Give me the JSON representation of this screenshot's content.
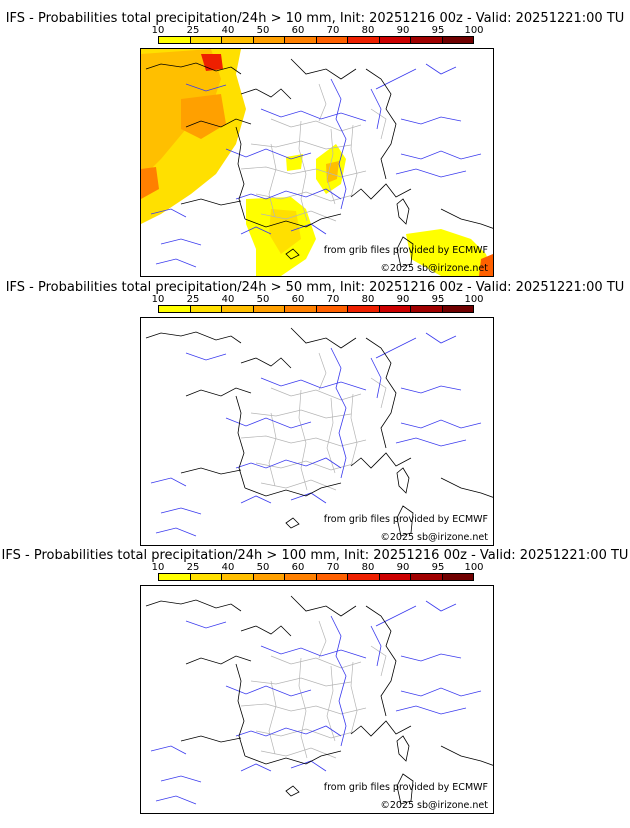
{
  "panels": [
    {
      "title": "IFS - Probabilities total precipitation/24h > 10 mm, Init: 20251216 00z - Valid: 20251221:00 TU",
      "threshold_mm": 10,
      "has_precip_overlay": true
    },
    {
      "title": "IFS - Probabilities total precipitation/24h > 50 mm, Init: 20251216 00z - Valid: 20251221:00 TU",
      "threshold_mm": 50,
      "has_precip_overlay": false
    },
    {
      "title": "IFS - Probabilities total precipitation/24h > 100 mm, Init: 20251216 00z - Valid: 20251221:00 TU",
      "threshold_mm": 100,
      "has_precip_overlay": false
    }
  ],
  "colorbar": {
    "labels": [
      "10",
      "25",
      "40",
      "50",
      "60",
      "70",
      "80",
      "90",
      "95",
      "100"
    ],
    "colors": [
      "#ffff00",
      "#ffe000",
      "#ffbf00",
      "#ffa000",
      "#ff8000",
      "#ff6000",
      "#ee2000",
      "#cc0000",
      "#a00000",
      "#700000"
    ]
  },
  "credits": {
    "source": "from grib files provided by ECMWF",
    "copyright": "©2025 sb@irizone.net"
  },
  "colors": {
    "coast": "#000000",
    "rivers": "#3a3aee",
    "regions": "#b0b0b0"
  }
}
